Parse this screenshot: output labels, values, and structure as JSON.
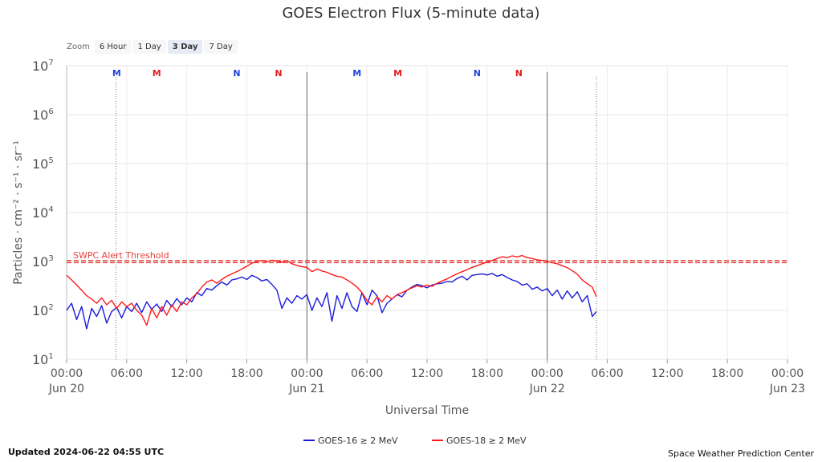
{
  "zoom": {
    "label": "Zoom",
    "buttons": [
      "6 Hour",
      "1 Day",
      "3 Day",
      "7 Day"
    ],
    "active": "3 Day"
  },
  "footer": {
    "updated": "Updated 2024-06-22 04:55 UTC",
    "credit": "Space Weather Prediction Center"
  },
  "chart_data": {
    "type": "line",
    "title": "GOES Electron Flux (5-minute data)",
    "xlabel": "Universal Time",
    "ylabel": "Particles · cm⁻² · s⁻¹ · sr⁻¹",
    "y_scale": "log",
    "ylim": [
      10,
      10000000
    ],
    "y_ticks": [
      {
        "value": 10,
        "base": "10",
        "exp": "1"
      },
      {
        "value": 100,
        "base": "10",
        "exp": "2"
      },
      {
        "value": 1000,
        "base": "10",
        "exp": "3"
      },
      {
        "value": 10000,
        "base": "10",
        "exp": "4"
      },
      {
        "value": 100000,
        "base": "10",
        "exp": "5"
      },
      {
        "value": 1000000,
        "base": "10",
        "exp": "6"
      },
      {
        "value": 10000000,
        "base": "10",
        "exp": "7"
      }
    ],
    "xlim": [
      "2024-06-20 00:00",
      "2024-06-23 00:00"
    ],
    "x_ticks": [
      {
        "time": "2024-06-20 00:00",
        "label": "00:00",
        "date": "Jun 20"
      },
      {
        "time": "2024-06-20 06:00",
        "label": "06:00",
        "date": ""
      },
      {
        "time": "2024-06-20 12:00",
        "label": "12:00",
        "date": ""
      },
      {
        "time": "2024-06-20 18:00",
        "label": "18:00",
        "date": ""
      },
      {
        "time": "2024-06-21 00:00",
        "label": "00:00",
        "date": "Jun 21"
      },
      {
        "time": "2024-06-21 06:00",
        "label": "06:00",
        "date": ""
      },
      {
        "time": "2024-06-21 12:00",
        "label": "12:00",
        "date": ""
      },
      {
        "time": "2024-06-21 18:00",
        "label": "18:00",
        "date": ""
      },
      {
        "time": "2024-06-22 00:00",
        "label": "00:00",
        "date": "Jun 22"
      },
      {
        "time": "2024-06-22 06:00",
        "label": "06:00",
        "date": ""
      },
      {
        "time": "2024-06-22 12:00",
        "label": "12:00",
        "date": ""
      },
      {
        "time": "2024-06-22 18:00",
        "label": "18:00",
        "date": ""
      },
      {
        "time": "2024-06-23 00:00",
        "label": "00:00",
        "date": "Jun 23"
      }
    ],
    "grid": true,
    "legend": "bottom-center",
    "threshold": {
      "label": "SWPC Alert Threshold",
      "value": 1000,
      "color": "#e8413c"
    },
    "day_lines": [
      "2024-06-21 00:00",
      "2024-06-22 00:00"
    ],
    "now_lines": [
      "2024-06-20 04:55",
      "2024-06-22 04:55"
    ],
    "markers": [
      {
        "label": "M",
        "time": "2024-06-20 05:00",
        "color": "#2244dd"
      },
      {
        "label": "M",
        "time": "2024-06-20 09:00",
        "color": "#e02020"
      },
      {
        "label": "N",
        "time": "2024-06-20 17:00",
        "color": "#2244dd"
      },
      {
        "label": "N",
        "time": "2024-06-20 21:10",
        "color": "#e02020"
      },
      {
        "label": "M",
        "time": "2024-06-21 05:00",
        "color": "#2244dd"
      },
      {
        "label": "M",
        "time": "2024-06-21 09:05",
        "color": "#e02020"
      },
      {
        "label": "N",
        "time": "2024-06-21 17:00",
        "color": "#2244dd"
      },
      {
        "label": "N",
        "time": "2024-06-21 21:10",
        "color": "#e02020"
      }
    ],
    "series": [
      {
        "name": "GOES-16 ≥ 2 MeV",
        "color": "#1a1adb",
        "points": [
          [
            "2024-06-20 00:00",
            100
          ],
          [
            "2024-06-20 00:30",
            140
          ],
          [
            "2024-06-20 01:00",
            65
          ],
          [
            "2024-06-20 01:30",
            120
          ],
          [
            "2024-06-20 02:00",
            42
          ],
          [
            "2024-06-20 02:30",
            110
          ],
          [
            "2024-06-20 03:00",
            75
          ],
          [
            "2024-06-20 03:30",
            125
          ],
          [
            "2024-06-20 04:00",
            55
          ],
          [
            "2024-06-20 04:30",
            95
          ],
          [
            "2024-06-20 05:00",
            115
          ],
          [
            "2024-06-20 05:30",
            70
          ],
          [
            "2024-06-20 06:00",
            120
          ],
          [
            "2024-06-20 06:30",
            95
          ],
          [
            "2024-06-20 07:00",
            140
          ],
          [
            "2024-06-20 07:30",
            90
          ],
          [
            "2024-06-20 08:00",
            150
          ],
          [
            "2024-06-20 08:30",
            105
          ],
          [
            "2024-06-20 09:00",
            135
          ],
          [
            "2024-06-20 09:30",
            95
          ],
          [
            "2024-06-20 10:00",
            160
          ],
          [
            "2024-06-20 10:30",
            120
          ],
          [
            "2024-06-20 11:00",
            175
          ],
          [
            "2024-06-20 11:30",
            130
          ],
          [
            "2024-06-20 12:00",
            180
          ],
          [
            "2024-06-20 12:30",
            150
          ],
          [
            "2024-06-20 13:00",
            230
          ],
          [
            "2024-06-20 13:30",
            200
          ],
          [
            "2024-06-20 14:00",
            280
          ],
          [
            "2024-06-20 14:30",
            260
          ],
          [
            "2024-06-20 15:00",
            320
          ],
          [
            "2024-06-20 15:30",
            380
          ],
          [
            "2024-06-20 16:00",
            330
          ],
          [
            "2024-06-20 16:30",
            420
          ],
          [
            "2024-06-20 17:00",
            440
          ],
          [
            "2024-06-20 17:30",
            480
          ],
          [
            "2024-06-20 18:00",
            430
          ],
          [
            "2024-06-20 18:30",
            520
          ],
          [
            "2024-06-20 19:00",
            470
          ],
          [
            "2024-06-20 19:30",
            400
          ],
          [
            "2024-06-20 20:00",
            430
          ],
          [
            "2024-06-20 20:30",
            340
          ],
          [
            "2024-06-20 21:00",
            260
          ],
          [
            "2024-06-20 21:30",
            110
          ],
          [
            "2024-06-20 22:00",
            180
          ],
          [
            "2024-06-20 22:30",
            140
          ],
          [
            "2024-06-20 23:00",
            200
          ],
          [
            "2024-06-20 23:30",
            170
          ],
          [
            "2024-06-21 00:00",
            210
          ],
          [
            "2024-06-21 00:30",
            100
          ],
          [
            "2024-06-21 01:00",
            180
          ],
          [
            "2024-06-21 01:30",
            120
          ],
          [
            "2024-06-21 02:00",
            230
          ],
          [
            "2024-06-21 02:30",
            60
          ],
          [
            "2024-06-21 03:00",
            200
          ],
          [
            "2024-06-21 03:30",
            110
          ],
          [
            "2024-06-21 04:00",
            230
          ],
          [
            "2024-06-21 04:30",
            120
          ],
          [
            "2024-06-21 05:00",
            95
          ],
          [
            "2024-06-21 05:30",
            230
          ],
          [
            "2024-06-21 06:00",
            130
          ],
          [
            "2024-06-21 06:30",
            260
          ],
          [
            "2024-06-21 07:00",
            200
          ],
          [
            "2024-06-21 07:30",
            90
          ],
          [
            "2024-06-21 08:00",
            140
          ],
          [
            "2024-06-21 08:30",
            170
          ],
          [
            "2024-06-21 09:00",
            210
          ],
          [
            "2024-06-21 09:30",
            190
          ],
          [
            "2024-06-21 10:00",
            260
          ],
          [
            "2024-06-21 10:30",
            300
          ],
          [
            "2024-06-21 11:00",
            340
          ],
          [
            "2024-06-21 11:30",
            320
          ],
          [
            "2024-06-21 12:00",
            290
          ],
          [
            "2024-06-21 12:30",
            330
          ],
          [
            "2024-06-21 13:00",
            350
          ],
          [
            "2024-06-21 13:30",
            360
          ],
          [
            "2024-06-21 14:00",
            390
          ],
          [
            "2024-06-21 14:30",
            380
          ],
          [
            "2024-06-21 15:00",
            450
          ],
          [
            "2024-06-21 15:30",
            500
          ],
          [
            "2024-06-21 16:00",
            420
          ],
          [
            "2024-06-21 16:30",
            520
          ],
          [
            "2024-06-21 17:00",
            540
          ],
          [
            "2024-06-21 17:30",
            560
          ],
          [
            "2024-06-21 18:00",
            530
          ],
          [
            "2024-06-21 18:30",
            570
          ],
          [
            "2024-06-21 19:00",
            500
          ],
          [
            "2024-06-21 19:30",
            540
          ],
          [
            "2024-06-21 20:00",
            470
          ],
          [
            "2024-06-21 20:30",
            420
          ],
          [
            "2024-06-21 21:00",
            390
          ],
          [
            "2024-06-21 21:30",
            330
          ],
          [
            "2024-06-21 22:00",
            350
          ],
          [
            "2024-06-21 22:30",
            270
          ],
          [
            "2024-06-21 23:00",
            300
          ],
          [
            "2024-06-21 23:30",
            250
          ],
          [
            "2024-06-22 00:00",
            280
          ],
          [
            "2024-06-22 00:30",
            200
          ],
          [
            "2024-06-22 01:00",
            260
          ],
          [
            "2024-06-22 01:30",
            170
          ],
          [
            "2024-06-22 02:00",
            250
          ],
          [
            "2024-06-22 02:30",
            180
          ],
          [
            "2024-06-22 03:00",
            240
          ],
          [
            "2024-06-22 03:30",
            150
          ],
          [
            "2024-06-22 04:00",
            200
          ],
          [
            "2024-06-22 04:30",
            75
          ],
          [
            "2024-06-22 04:55",
            95
          ]
        ]
      },
      {
        "name": "GOES-18 ≥ 2 MeV",
        "color": "#ff1a1a",
        "points": [
          [
            "2024-06-20 00:00",
            520
          ],
          [
            "2024-06-20 00:30",
            420
          ],
          [
            "2024-06-20 01:00",
            330
          ],
          [
            "2024-06-20 01:30",
            260
          ],
          [
            "2024-06-20 02:00",
            200
          ],
          [
            "2024-06-20 02:30",
            170
          ],
          [
            "2024-06-20 03:00",
            140
          ],
          [
            "2024-06-20 03:30",
            180
          ],
          [
            "2024-06-20 04:00",
            130
          ],
          [
            "2024-06-20 04:30",
            160
          ],
          [
            "2024-06-20 05:00",
            110
          ],
          [
            "2024-06-20 05:30",
            150
          ],
          [
            "2024-06-20 06:00",
            120
          ],
          [
            "2024-06-20 06:30",
            140
          ],
          [
            "2024-06-20 07:00",
            100
          ],
          [
            "2024-06-20 07:30",
            80
          ],
          [
            "2024-06-20 08:00",
            50
          ],
          [
            "2024-06-20 08:30",
            110
          ],
          [
            "2024-06-20 09:00",
            70
          ],
          [
            "2024-06-20 09:30",
            120
          ],
          [
            "2024-06-20 10:00",
            80
          ],
          [
            "2024-06-20 10:30",
            130
          ],
          [
            "2024-06-20 11:00",
            95
          ],
          [
            "2024-06-20 11:30",
            150
          ],
          [
            "2024-06-20 12:00",
            130
          ],
          [
            "2024-06-20 12:30",
            180
          ],
          [
            "2024-06-20 13:00",
            220
          ],
          [
            "2024-06-20 13:30",
            300
          ],
          [
            "2024-06-20 14:00",
            380
          ],
          [
            "2024-06-20 14:30",
            420
          ],
          [
            "2024-06-20 15:00",
            360
          ],
          [
            "2024-06-20 15:30",
            430
          ],
          [
            "2024-06-20 16:00",
            500
          ],
          [
            "2024-06-20 16:30",
            560
          ],
          [
            "2024-06-20 17:00",
            620
          ],
          [
            "2024-06-20 17:30",
            700
          ],
          [
            "2024-06-20 18:00",
            800
          ],
          [
            "2024-06-20 18:30",
            920
          ],
          [
            "2024-06-20 19:00",
            1000
          ],
          [
            "2024-06-20 19:30",
            1050
          ],
          [
            "2024-06-20 20:00",
            980
          ],
          [
            "2024-06-20 20:30",
            1060
          ],
          [
            "2024-06-20 21:00",
            1020
          ],
          [
            "2024-06-20 21:30",
            960
          ],
          [
            "2024-06-20 22:00",
            1040
          ],
          [
            "2024-06-20 22:30",
            900
          ],
          [
            "2024-06-20 23:00",
            830
          ],
          [
            "2024-06-20 23:30",
            780
          ],
          [
            "2024-06-21 00:00",
            760
          ],
          [
            "2024-06-21 00:30",
            620
          ],
          [
            "2024-06-21 01:00",
            700
          ],
          [
            "2024-06-21 01:30",
            640
          ],
          [
            "2024-06-21 02:00",
            600
          ],
          [
            "2024-06-21 02:30",
            540
          ],
          [
            "2024-06-21 03:00",
            500
          ],
          [
            "2024-06-21 03:30",
            480
          ],
          [
            "2024-06-21 04:00",
            420
          ],
          [
            "2024-06-21 04:30",
            360
          ],
          [
            "2024-06-21 05:00",
            300
          ],
          [
            "2024-06-21 05:30",
            230
          ],
          [
            "2024-06-21 06:00",
            160
          ],
          [
            "2024-06-21 06:30",
            130
          ],
          [
            "2024-06-21 07:00",
            190
          ],
          [
            "2024-06-21 07:30",
            150
          ],
          [
            "2024-06-21 08:00",
            200
          ],
          [
            "2024-06-21 08:30",
            170
          ],
          [
            "2024-06-21 09:00",
            210
          ],
          [
            "2024-06-21 09:30",
            230
          ],
          [
            "2024-06-21 10:00",
            260
          ],
          [
            "2024-06-21 10:30",
            290
          ],
          [
            "2024-06-21 11:00",
            320
          ],
          [
            "2024-06-21 11:30",
            300
          ],
          [
            "2024-06-21 12:00",
            330
          ],
          [
            "2024-06-21 12:30",
            310
          ],
          [
            "2024-06-21 13:00",
            360
          ],
          [
            "2024-06-21 13:30",
            400
          ],
          [
            "2024-06-21 14:00",
            440
          ],
          [
            "2024-06-21 14:30",
            500
          ],
          [
            "2024-06-21 15:00",
            560
          ],
          [
            "2024-06-21 15:30",
            620
          ],
          [
            "2024-06-21 16:00",
            680
          ],
          [
            "2024-06-21 16:30",
            760
          ],
          [
            "2024-06-21 17:00",
            820
          ],
          [
            "2024-06-21 17:30",
            900
          ],
          [
            "2024-06-21 18:00",
            970
          ],
          [
            "2024-06-21 18:30",
            1050
          ],
          [
            "2024-06-21 19:00",
            1150
          ],
          [
            "2024-06-21 19:30",
            1250
          ],
          [
            "2024-06-21 20:00",
            1200
          ],
          [
            "2024-06-21 20:30",
            1300
          ],
          [
            "2024-06-21 21:00",
            1240
          ],
          [
            "2024-06-21 21:30",
            1320
          ],
          [
            "2024-06-21 22:00",
            1200
          ],
          [
            "2024-06-21 22:30",
            1150
          ],
          [
            "2024-06-21 23:00",
            1080
          ],
          [
            "2024-06-21 23:30",
            1050
          ],
          [
            "2024-06-22 00:00",
            1000
          ],
          [
            "2024-06-22 00:30",
            950
          ],
          [
            "2024-06-22 01:00",
            900
          ],
          [
            "2024-06-22 01:30",
            820
          ],
          [
            "2024-06-22 02:00",
            750
          ],
          [
            "2024-06-22 02:30",
            650
          ],
          [
            "2024-06-22 03:00",
            550
          ],
          [
            "2024-06-22 03:30",
            420
          ],
          [
            "2024-06-22 04:00",
            350
          ],
          [
            "2024-06-22 04:30",
            300
          ],
          [
            "2024-06-22 04:55",
            190
          ]
        ]
      }
    ]
  }
}
